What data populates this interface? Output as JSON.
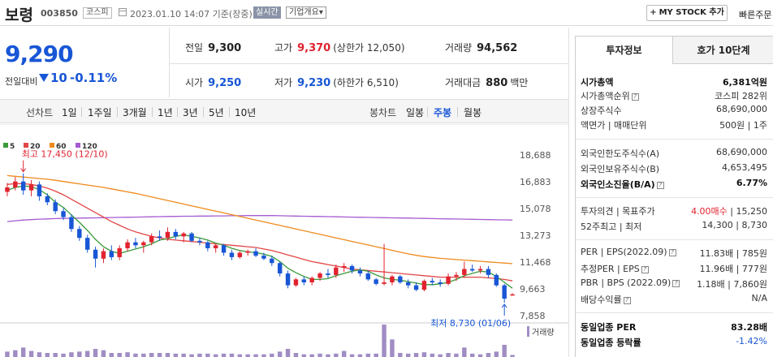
{
  "header": {
    "stock_name": "보령",
    "stock_code": "003850",
    "market": "코스피",
    "datetime": "2023.01.10 14:07 기준(장중)",
    "realtime_badge": "실시간",
    "company_overview": "기업개요",
    "chevron": "▾",
    "my_stock_button": "MY STOCK 추가",
    "quick_order": "빠른주문"
  },
  "price": {
    "current": "9,290",
    "change_label": "전일대비",
    "change_value": "10",
    "change_percent": "-0.11%"
  },
  "quote": {
    "prev_close_label": "전일",
    "prev_close": "9,300",
    "high_label": "고가",
    "high": "9,370",
    "upper_limit": "(상한가 12,050)",
    "volume_label": "거래량",
    "volume": "94,562",
    "open_label": "시가",
    "open": "9,250",
    "low_label": "저가",
    "low": "9,230",
    "lower_limit": "(하한가 6,510)",
    "amount_label": "거래대금",
    "amount": "880",
    "amount_unit": "백만"
  },
  "periods": {
    "line_label": "선차트",
    "line_items": [
      "1일",
      "1주일",
      "3개월",
      "1년",
      "3년",
      "5년",
      "10년"
    ],
    "candle_label": "봉차트",
    "candle_items": [
      "일봉",
      "주봉",
      "월봉"
    ],
    "active_candle": "주봉"
  },
  "chart_data": {
    "type": "candlestick",
    "legend": [
      {
        "name": "5",
        "color": "#3a9b3a"
      },
      {
        "name": "20",
        "color": "#e34646"
      },
      {
        "name": "60",
        "color": "#f08a1d"
      },
      {
        "name": "120",
        "color": "#a55bd1"
      }
    ],
    "y_ticks": [
      "18,688",
      "16,883",
      "15,078",
      "13,273",
      "11,468",
      "9,663",
      "7,858"
    ],
    "y_tick_values": [
      18688,
      16883,
      15078,
      13273,
      11468,
      9663,
      7858
    ],
    "ylim": [
      7858,
      18688
    ],
    "high_annotation": "최고 17,450 (12/10)",
    "low_annotation": "최저 8,730 (01/06)",
    "volume_label": "거래량",
    "candles": [
      [
        16200,
        16800,
        15900,
        16500
      ],
      [
        16500,
        17200,
        16300,
        16900
      ],
      [
        16900,
        17450,
        16000,
        16300
      ],
      [
        16300,
        17000,
        15900,
        16700
      ],
      [
        16700,
        16900,
        15600,
        15900
      ],
      [
        15900,
        16100,
        15300,
        15500
      ],
      [
        15500,
        15700,
        14700,
        14900
      ],
      [
        14900,
        15100,
        14300,
        14500
      ],
      [
        14500,
        14700,
        13500,
        13700
      ],
      [
        13700,
        13900,
        12900,
        13100
      ],
      [
        13100,
        13300,
        12100,
        12300
      ],
      [
        12300,
        12500,
        11100,
        11700
      ],
      [
        11700,
        12400,
        11400,
        12200
      ],
      [
        12200,
        12600,
        11600,
        11800
      ],
      [
        11800,
        12600,
        11600,
        12400
      ],
      [
        12400,
        13000,
        12200,
        12800
      ],
      [
        12800,
        13100,
        12400,
        12600
      ],
      [
        12600,
        12900,
        12100,
        12800
      ],
      [
        12800,
        13400,
        12600,
        13200
      ],
      [
        13200,
        13600,
        12900,
        13100
      ],
      [
        13100,
        13800,
        12900,
        13500
      ],
      [
        13500,
        13700,
        13000,
        13200
      ],
      [
        13200,
        13500,
        12800,
        13400
      ],
      [
        13400,
        13500,
        12800,
        12900
      ],
      [
        12900,
        13100,
        12600,
        12800
      ],
      [
        12800,
        12900,
        12200,
        12400
      ],
      [
        12400,
        12700,
        12100,
        12600
      ],
      [
        12600,
        12700,
        11900,
        12100
      ],
      [
        12100,
        12300,
        11600,
        11800
      ],
      [
        11800,
        12200,
        11700,
        12100
      ],
      [
        12100,
        12300,
        11900,
        12200
      ],
      [
        12200,
        12400,
        11800,
        11900
      ],
      [
        11900,
        12100,
        11600,
        11700
      ],
      [
        11700,
        11900,
        11200,
        11400
      ],
      [
        11400,
        11500,
        10500,
        10700
      ],
      [
        10700,
        10900,
        9700,
        9900
      ],
      [
        9900,
        10400,
        9800,
        10300
      ],
      [
        10300,
        10500,
        9900,
        10100
      ],
      [
        10100,
        10500,
        9900,
        10400
      ],
      [
        10400,
        10800,
        10200,
        10700
      ],
      [
        10700,
        11000,
        10400,
        10600
      ],
      [
        10600,
        11300,
        10400,
        11100
      ],
      [
        11100,
        11400,
        10800,
        11200
      ],
      [
        11200,
        11300,
        10700,
        10900
      ],
      [
        10900,
        11100,
        10500,
        10700
      ],
      [
        10700,
        10900,
        10200,
        10300
      ],
      [
        10300,
        10400,
        9900,
        10000
      ],
      [
        10000,
        12700,
        9900,
        10100
      ],
      [
        10100,
        10600,
        9900,
        10500
      ],
      [
        10500,
        10600,
        10000,
        10100
      ],
      [
        10100,
        10300,
        9700,
        9900
      ],
      [
        9900,
        10100,
        9500,
        9600
      ],
      [
        9600,
        10300,
        9500,
        10200
      ],
      [
        10200,
        10400,
        9900,
        10100
      ],
      [
        10100,
        10300,
        9800,
        10000
      ],
      [
        10000,
        10700,
        9900,
        10500
      ],
      [
        10500,
        10800,
        10200,
        10600
      ],
      [
        10600,
        11500,
        10400,
        11000
      ],
      [
        11000,
        11300,
        10800,
        10900
      ],
      [
        10900,
        11200,
        10700,
        11000
      ],
      [
        11000,
        11200,
        10400,
        10600
      ],
      [
        10600,
        10700,
        9800,
        9900
      ],
      [
        9900,
        10000,
        8730,
        9000
      ],
      [
        9250,
        9370,
        9230,
        9290
      ]
    ],
    "volumes": [
      8,
      10,
      14,
      9,
      7,
      6,
      6,
      5,
      7,
      8,
      9,
      12,
      10,
      6,
      6,
      7,
      5,
      5,
      6,
      6,
      6,
      5,
      5,
      4,
      5,
      5,
      4,
      5,
      5,
      4,
      4,
      4,
      4,
      5,
      8,
      12,
      6,
      4,
      4,
      5,
      4,
      5,
      9,
      4,
      4,
      5,
      5,
      48,
      26,
      6,
      5,
      6,
      7,
      5,
      4,
      6,
      5,
      14,
      5,
      4,
      6,
      8,
      18,
      3
    ],
    "ma5": [
      16300,
      16500,
      16600,
      16550,
      16350,
      16000,
      15500,
      15150,
      14650,
      14150,
      13600,
      13000,
      12500,
      12200,
      12050,
      12200,
      12350,
      12500,
      12700,
      12950,
      13050,
      13200,
      13300,
      13200,
      13100,
      12950,
      12750,
      12600,
      12400,
      12250,
      12150,
      12100,
      12000,
      11850,
      11500,
      11050,
      10750,
      10500,
      10300,
      10300,
      10350,
      10550,
      10700,
      10850,
      10950,
      10850,
      10600,
      10400,
      10300,
      10250,
      10150,
      10050,
      9950,
      9950,
      10000,
      10100,
      10300,
      10550,
      10700,
      10850,
      10800,
      10500,
      10100,
      9700
    ],
    "ma20": [
      16700,
      16750,
      16750,
      16700,
      16600,
      16450,
      16250,
      16000,
      15700,
      15400,
      15100,
      14800,
      14500,
      14200,
      13950,
      13700,
      13500,
      13350,
      13200,
      13100,
      13000,
      12950,
      12900,
      12850,
      12800,
      12750,
      12700,
      12650,
      12600,
      12550,
      12500,
      12450,
      12350,
      12250,
      12100,
      11950,
      11800,
      11650,
      11500,
      11400,
      11300,
      11200,
      11100,
      11000,
      10950,
      10900,
      10850,
      10800,
      10750,
      10700,
      10650,
      10600,
      10550,
      10500,
      10450,
      10450,
      10450,
      10450,
      10450,
      10450,
      10400,
      10350,
      10300,
      10200
    ],
    "ma60": [
      17300,
      17250,
      17200,
      17150,
      17100,
      17050,
      16980,
      16900,
      16820,
      16740,
      16660,
      16580,
      16500,
      16400,
      16300,
      16200,
      16100,
      15980,
      15860,
      15740,
      15620,
      15500,
      15380,
      15260,
      15140,
      15020,
      14900,
      14780,
      14660,
      14540,
      14420,
      14300,
      14180,
      14060,
      13940,
      13820,
      13700,
      13580,
      13460,
      13340,
      13220,
      13100,
      12980,
      12860,
      12740,
      12620,
      12500,
      12380,
      12260,
      12140,
      12020,
      11920,
      11840,
      11780,
      11720,
      11680,
      11640,
      11600,
      11560,
      11520,
      11480,
      11440,
      11400,
      11360
    ],
    "ma120": [
      14200,
      14250,
      14300,
      14330,
      14360,
      14380,
      14400,
      14410,
      14420,
      14430,
      14440,
      14450,
      14460,
      14470,
      14480,
      14490,
      14500,
      14510,
      14520,
      14530,
      14540,
      14550,
      14560,
      14560,
      14570,
      14570,
      14580,
      14580,
      14590,
      14590,
      14600,
      14600,
      14600,
      14600,
      14590,
      14580,
      14570,
      14560,
      14550,
      14540,
      14530,
      14520,
      14510,
      14500,
      14490,
      14480,
      14470,
      14460,
      14450,
      14440,
      14430,
      14420,
      14410,
      14400,
      14390,
      14380,
      14370,
      14360,
      14350,
      14340,
      14330,
      14320,
      14310,
      14300
    ]
  },
  "right_panel": {
    "tab_invest": "투자정보",
    "tab_orderbook": "호가 10단계",
    "market_cap_label": "시가총액",
    "market_cap": "6,381억원",
    "market_cap_rank_label": "시가총액순위",
    "market_cap_rank": "코스피 282위",
    "listed_shares_label": "상장주식수",
    "listed_shares": "68,690,000",
    "face_value_label": "액면가 | 매매단위",
    "face_value": "500원 | 1주",
    "foreign_limit_label": "외국인한도주식수(A)",
    "foreign_limit": "68,690,000",
    "foreign_hold_label": "외국인보유주식수(B)",
    "foreign_hold": "4,653,495",
    "foreign_ratio_label": "외국인소진율(B/A)",
    "foreign_ratio": "6.77%",
    "opinion_label": "투자의견 | 목표주가",
    "opinion": "4.00매수",
    "target_price": "15,250",
    "week52_label": "52주최고 | 최저",
    "week52": "14,300 | 8,730",
    "per_label": "PER | EPS(2022.09)",
    "per": "11.83배 | 785원",
    "est_per_label": "추정PER | EPS",
    "est_per": "11.96배 | 777원",
    "pbr_label": "PBR | BPS (2022.09)",
    "pbr": "1.18배 | 7,860원",
    "dividend_label": "배당수익률",
    "dividend": "N/A",
    "sector_per_label": "동일업종 PER",
    "sector_per": "83.28배",
    "sector_change_label": "동일업종 등락률",
    "sector_change": "-1.42%"
  }
}
